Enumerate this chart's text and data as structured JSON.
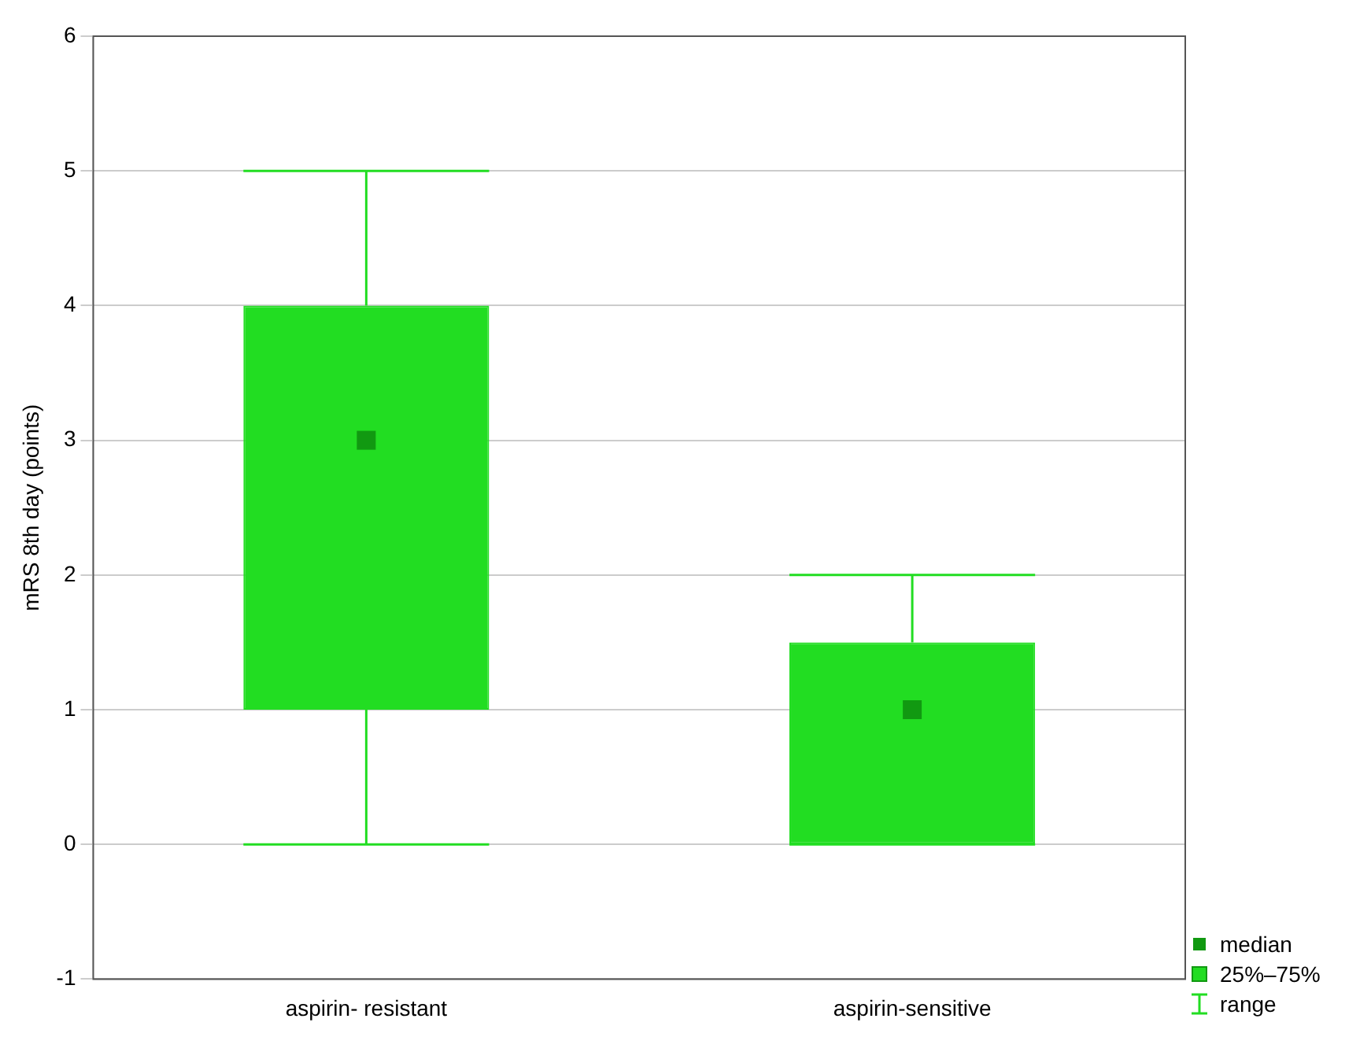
{
  "chart_data": {
    "type": "box",
    "ylabel": "mRS 8th day (points)",
    "categories": [
      "aspirin- resistant",
      "aspirin-sensitive"
    ],
    "series": [
      {
        "color": "#22dd22",
        "boxes": [
          {
            "low": 0,
            "q1": 1,
            "median": 3,
            "q3": 4,
            "high": 5
          },
          {
            "low": 0,
            "q1": 0,
            "median": 1,
            "q3": 1.5,
            "high": 2
          }
        ]
      }
    ],
    "ylim": [
      -1,
      6
    ],
    "yticks": [
      -1,
      0,
      1,
      2,
      3,
      4,
      5,
      6
    ],
    "grid": "y",
    "annotations": [
      "median",
      "25%–75%",
      "range"
    ]
  }
}
